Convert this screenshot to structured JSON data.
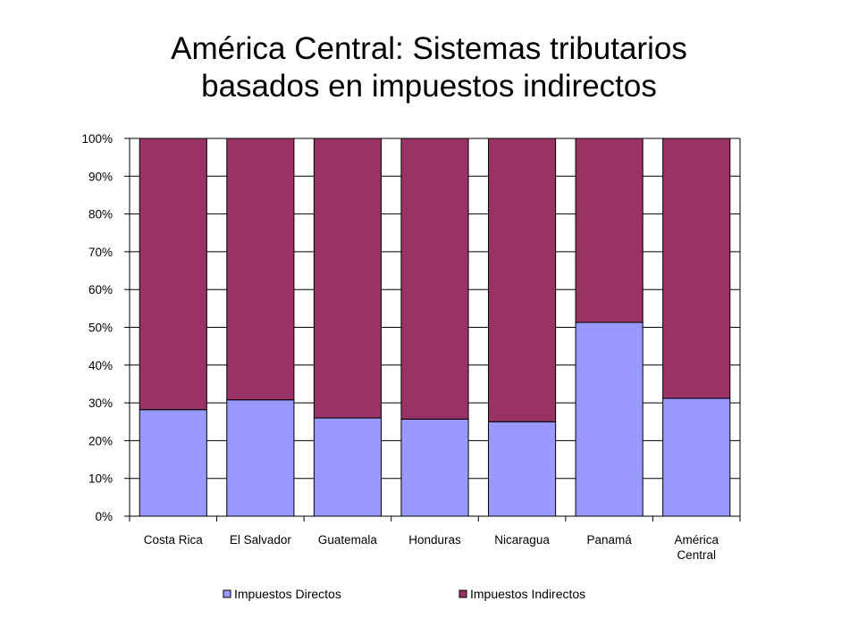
{
  "chart_data": {
    "type": "bar",
    "stacked": true,
    "title": [
      "América Central: Sistemas tributarios",
      "basados en impuestos indirectos"
    ],
    "categories": [
      [
        "Costa Rica"
      ],
      [
        "El Salvador"
      ],
      [
        "Guatemala"
      ],
      [
        "Honduras"
      ],
      [
        "Nicaragua"
      ],
      [
        "Panamá"
      ],
      [
        "América",
        "Central"
      ]
    ],
    "series": [
      {
        "name": "Impuestos Directos",
        "color": "#9999ff",
        "values": [
          28.2,
          30.8,
          26.0,
          25.7,
          25.0,
          51.3,
          31.2
        ]
      },
      {
        "name": "Impuestos Indirectos",
        "color": "#993366",
        "values": [
          71.8,
          69.2,
          74.0,
          74.3,
          75.0,
          48.7,
          68.8
        ]
      }
    ],
    "ylim": [
      0,
      100
    ],
    "yticks": [
      "0%",
      "10%",
      "20%",
      "30%",
      "40%",
      "50%",
      "60%",
      "70%",
      "80%",
      "90%",
      "100%"
    ],
    "grid": true,
    "legend_position": "bottom"
  }
}
